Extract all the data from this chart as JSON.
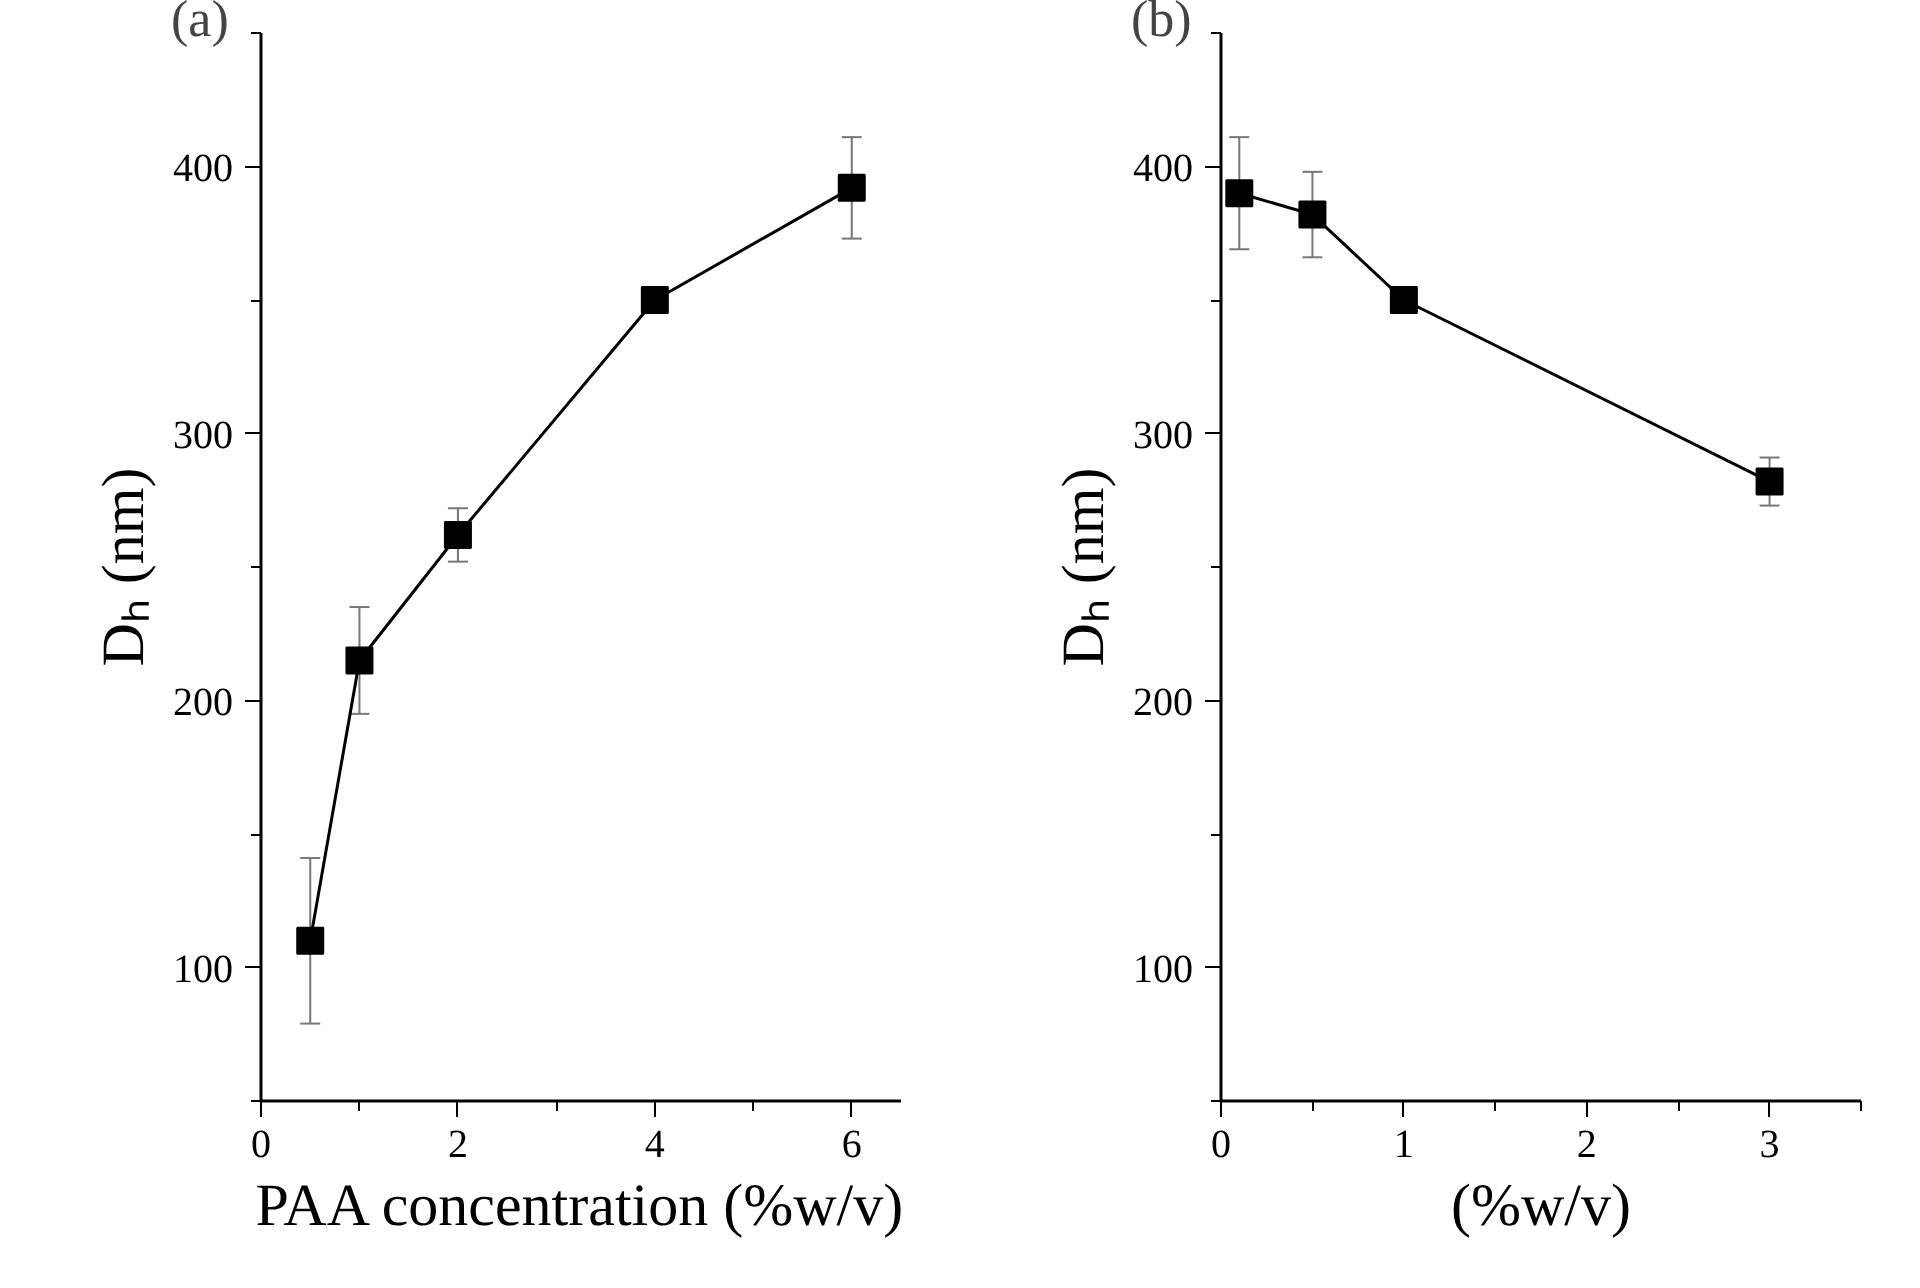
{
  "chart_data": [
    {
      "type": "line",
      "title": "(a)",
      "xlabel": "PAA concentration (%w/v)",
      "ylabel": "Dₕ (nm)",
      "x": [
        0.5,
        1,
        2,
        4,
        6
      ],
      "series": [
        {
          "color": "#000000",
          "values": [
            110,
            215,
            262,
            350,
            392
          ],
          "errors": [
            31,
            20,
            10,
            2,
            19
          ]
        }
      ],
      "xlim": [
        0,
        6.5
      ],
      "xticks": [
        0,
        2,
        4,
        6
      ],
      "ylim": [
        50,
        450
      ],
      "yticks": [
        100,
        200,
        300,
        400
      ],
      "marker": "square",
      "line_style": "solid",
      "grid": false
    },
    {
      "type": "line",
      "title": "(b)",
      "xlabel": "(%w/v)",
      "ylabel": "Dₕ (nm)",
      "x": [
        0.1,
        0.5,
        1,
        3
      ],
      "series": [
        {
          "color": "#000000",
          "values": [
            390,
            382,
            350,
            282
          ],
          "errors": [
            21,
            16,
            3,
            9
          ]
        }
      ],
      "xlim": [
        0,
        3.5
      ],
      "xticks": [
        0,
        1,
        2,
        3
      ],
      "ylim": [
        50,
        450
      ],
      "yticks": [
        100,
        200,
        300,
        400
      ],
      "marker": "square",
      "line_style": "solid",
      "grid": false
    }
  ]
}
